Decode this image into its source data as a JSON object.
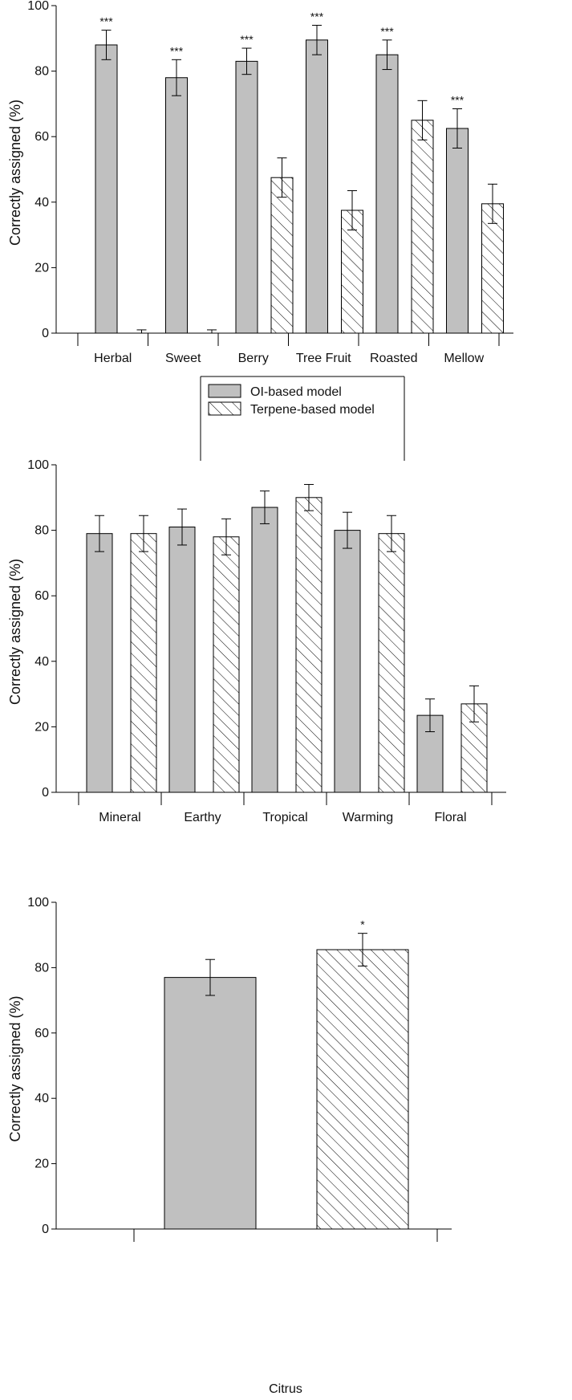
{
  "colors": {
    "ol_fill": "#c0c0c0",
    "stroke": "#000000",
    "hatch": "#000000",
    "background": "#ffffff"
  },
  "chart_data": [
    {
      "type": "bar",
      "ylabel": "Correctly assigned (%)",
      "xlabel": "",
      "ylim": [
        0,
        100
      ],
      "yticks": [
        "0",
        "20",
        "40",
        "60",
        "80",
        "100"
      ],
      "categories": [
        "Herbal",
        "Sweet",
        "Berry",
        "Tree Fruit",
        "Roasted",
        "Mellow"
      ],
      "series": [
        {
          "name": "OI-based model",
          "values": [
            88,
            78,
            83,
            89.5,
            85,
            62.5
          ],
          "errors": [
            4.5,
            5.5,
            4,
            4.5,
            4.5,
            6
          ]
        },
        {
          "name": "Terpene-based model",
          "values": [
            0,
            0,
            47.5,
            37.5,
            65,
            39.5
          ],
          "errors": [
            1,
            1,
            6,
            6,
            6,
            6
          ]
        }
      ],
      "annotations": [
        "***",
        "***",
        "***",
        "***",
        "***",
        "***"
      ],
      "legend": {
        "position": "bottom-center",
        "entries": [
          "OI-based model",
          "Terpene-based model"
        ]
      }
    },
    {
      "type": "bar",
      "ylabel": "Correctly assigned (%)",
      "xlabel": "",
      "ylim": [
        0,
        100
      ],
      "yticks": [
        "0",
        "20",
        "40",
        "60",
        "80",
        "100"
      ],
      "categories": [
        "Mineral",
        "Earthy",
        "Tropical",
        "Warming",
        "Floral"
      ],
      "series": [
        {
          "name": "OI-based model",
          "values": [
            79,
            81,
            87,
            80,
            23.5
          ],
          "errors": [
            5.5,
            5.5,
            5,
            5.5,
            5
          ]
        },
        {
          "name": "Terpene-based model",
          "values": [
            79,
            78,
            90,
            79,
            27
          ],
          "errors": [
            5.5,
            5.5,
            4,
            5.5,
            5.5
          ]
        }
      ],
      "annotations": [
        "",
        "",
        "",
        "",
        ""
      ]
    },
    {
      "type": "bar",
      "ylabel": "Correctly assigned (%)",
      "xlabel": "",
      "ylim": [
        0,
        100
      ],
      "yticks": [
        "0",
        "20",
        "40",
        "60",
        "80",
        "100"
      ],
      "categories": [
        "Citrus"
      ],
      "series": [
        {
          "name": "OI-based model",
          "values": [
            77
          ],
          "errors": [
            5.5
          ]
        },
        {
          "name": "Terpene-based model",
          "values": [
            85.5
          ],
          "errors": [
            5
          ]
        }
      ],
      "annotations": [
        "*"
      ]
    }
  ]
}
